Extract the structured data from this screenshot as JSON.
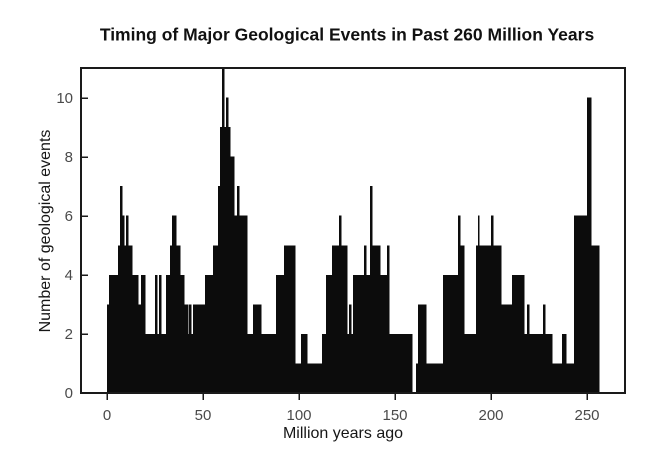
{
  "page": {
    "background": "#ffffff"
  },
  "chart_data": {
    "type": "bar",
    "subtype": "histogram",
    "title": "Timing of Major Geological Events in Past 260 Million Years",
    "x_axis": {
      "label": "Million years ago",
      "min": -13.5,
      "max": 269.8,
      "ticks": [
        0,
        50,
        100,
        150,
        200,
        250
      ]
    },
    "y_axis": {
      "label": "Number of geological events",
      "min": 0,
      "max": 11,
      "ticks": [
        0,
        2,
        4,
        6,
        8,
        10
      ]
    },
    "grid": false,
    "legend": false,
    "bar_color": "#0c0c0c",
    "frame_color": "#1a1a1a",
    "tick_label_color": "#4a4a4a",
    "segments": [
      [
        0,
        1,
        3
      ],
      [
        1,
        6,
        4
      ],
      [
        6,
        7,
        5
      ],
      [
        7,
        8,
        7
      ],
      [
        8,
        9,
        6
      ],
      [
        9,
        10,
        5
      ],
      [
        10,
        11,
        6
      ],
      [
        11,
        13,
        5
      ],
      [
        13,
        16,
        4
      ],
      [
        16,
        18,
        3
      ],
      [
        18,
        20,
        4
      ],
      [
        20,
        25,
        2
      ],
      [
        25,
        26,
        4
      ],
      [
        26,
        27,
        2
      ],
      [
        27,
        28,
        4
      ],
      [
        28,
        31,
        2
      ],
      [
        31,
        33,
        4
      ],
      [
        33,
        34,
        5
      ],
      [
        34,
        36,
        6
      ],
      [
        36,
        38,
        5
      ],
      [
        38,
        40,
        4
      ],
      [
        40,
        42,
        3
      ],
      [
        42,
        43,
        2
      ],
      [
        43,
        44,
        3
      ],
      [
        44,
        45,
        2
      ],
      [
        45,
        46,
        3
      ],
      [
        46,
        51,
        3
      ],
      [
        51,
        55,
        4
      ],
      [
        55,
        58,
        5
      ],
      [
        58,
        59,
        7
      ],
      [
        59,
        60,
        9
      ],
      [
        60,
        61,
        11
      ],
      [
        61,
        62,
        9
      ],
      [
        62,
        63,
        10
      ],
      [
        63,
        64,
        9
      ],
      [
        64,
        66,
        8
      ],
      [
        66,
        68,
        6
      ],
      [
        68,
        69,
        7
      ],
      [
        69,
        73,
        6
      ],
      [
        73,
        76,
        2
      ],
      [
        76,
        80,
        3
      ],
      [
        80,
        88,
        2
      ],
      [
        88,
        92,
        4
      ],
      [
        92,
        98,
        5
      ],
      [
        98,
        101,
        1
      ],
      [
        101,
        104,
        2
      ],
      [
        104,
        112,
        1
      ],
      [
        112,
        114,
        2
      ],
      [
        114,
        117,
        4
      ],
      [
        117,
        121,
        5
      ],
      [
        121,
        122,
        6
      ],
      [
        122,
        125,
        5
      ],
      [
        125,
        126,
        2
      ],
      [
        126,
        127,
        3
      ],
      [
        127,
        128,
        2
      ],
      [
        128,
        134,
        4
      ],
      [
        134,
        135,
        5
      ],
      [
        135,
        137,
        4
      ],
      [
        137,
        138,
        7
      ],
      [
        138,
        142,
        5
      ],
      [
        142,
        146,
        4
      ],
      [
        146,
        147,
        5
      ],
      [
        147,
        159,
        2
      ],
      [
        159,
        161,
        0
      ],
      [
        161,
        162,
        1
      ],
      [
        162,
        166,
        3
      ],
      [
        166,
        175,
        1
      ],
      [
        175,
        183,
        4
      ],
      [
        183,
        184,
        6
      ],
      [
        184,
        186,
        5
      ],
      [
        186,
        192,
        2
      ],
      [
        192,
        193,
        5
      ],
      [
        193,
        194,
        6
      ],
      [
        194,
        200,
        5
      ],
      [
        200,
        201,
        6
      ],
      [
        201,
        205,
        5
      ],
      [
        205,
        211,
        3
      ],
      [
        211,
        217,
        4
      ],
      [
        217,
        219,
        2
      ],
      [
        219,
        220,
        3
      ],
      [
        220,
        227,
        2
      ],
      [
        227,
        228,
        3
      ],
      [
        228,
        232,
        2
      ],
      [
        232,
        237,
        1
      ],
      [
        237,
        239,
        2
      ],
      [
        239,
        243,
        1
      ],
      [
        243,
        250,
        6
      ],
      [
        250,
        252,
        10
      ],
      [
        252,
        256,
        5
      ]
    ]
  }
}
